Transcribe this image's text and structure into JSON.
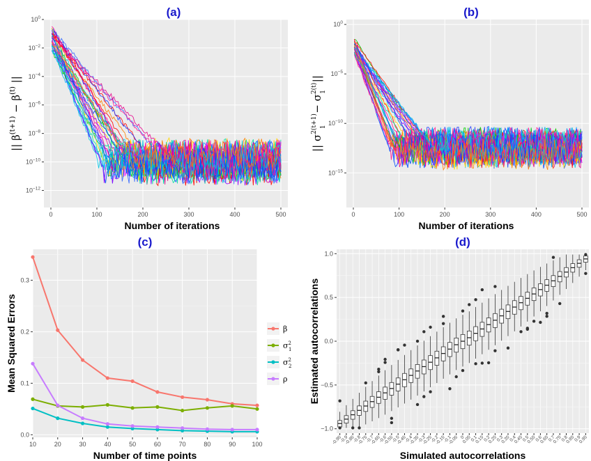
{
  "chart_data": [
    {
      "id": "a",
      "type": "line",
      "title": "(a)",
      "xlabel": "Number of iterations",
      "ylabel_parts": [
        "|| β",
        "(t+1)",
        " − β",
        "(t)",
        " ||"
      ],
      "xlim": [
        0,
        500
      ],
      "x_ticks": [
        0,
        100,
        200,
        300,
        400,
        500
      ],
      "y_scale": "log10",
      "ylim_log10": [
        -13.2,
        0
      ],
      "y_tick_exponents": [
        0,
        -2,
        -4,
        -6,
        -8,
        -10,
        -12
      ],
      "grid": true,
      "series_description": "many replicate convergence traces",
      "curve_params": {
        "start_log10": -1.2,
        "slope_per_iter": -0.055,
        "plateau_log10": -10.0,
        "noise_log10": 1.1
      },
      "colors": [
        "#1f3cff",
        "#0047ff",
        "#ff1493",
        "#e8008c",
        "#00c8e8",
        "#ff7f00",
        "#9a00ff",
        "#00d000",
        "#ffd700",
        "#ff0000",
        "#00a0ff",
        "#ff00ff",
        "#3366ff",
        "#00e0a0"
      ]
    },
    {
      "id": "b",
      "type": "line",
      "title": "(b)",
      "xlabel": "Number of iterations",
      "ylabel_parts": [
        "|| σ",
        "2(t+1)",
        "1",
        " − σ",
        "2(t)",
        "1",
        " ||"
      ],
      "xlim": [
        0,
        500
      ],
      "x_ticks": [
        0,
        100,
        200,
        300,
        400,
        500
      ],
      "y_scale": "log10",
      "ylim_log10": [
        -18.5,
        0.5
      ],
      "y_tick_exponents": [
        0,
        -5,
        -10,
        -15
      ],
      "grid": true,
      "series_description": "many replicate convergence traces",
      "curve_params": {
        "start_log10": -2.0,
        "slope_per_iter": -0.09,
        "plateau_log10": -12.5,
        "noise_log10": 1.6
      },
      "colors": [
        "#1f3cff",
        "#0047ff",
        "#ff1493",
        "#e8008c",
        "#00c8e8",
        "#ff7f00",
        "#9a00ff",
        "#00d000",
        "#ffd700",
        "#ff0000",
        "#00a0ff",
        "#ff00ff",
        "#3366ff",
        "#00e0a0"
      ]
    },
    {
      "id": "c",
      "type": "line",
      "title": "(c)",
      "xlabel": "Number of time points",
      "ylabel": "Mean Squared Errors",
      "x": [
        10,
        20,
        30,
        40,
        50,
        60,
        70,
        80,
        90,
        100
      ],
      "xlim": [
        10,
        100
      ],
      "ylim": [
        -0.005,
        0.36
      ],
      "y_ticks": [
        0.0,
        0.1,
        0.2,
        0.3
      ],
      "grid": true,
      "legend_position": "right",
      "series": [
        {
          "name": "β",
          "sub": "",
          "sup": "",
          "color": "#f8766d",
          "values": [
            0.345,
            0.203,
            0.145,
            0.11,
            0.104,
            0.083,
            0.073,
            0.068,
            0.06,
            0.057
          ]
        },
        {
          "name": "σ",
          "sub": "1",
          "sup": "2",
          "color": "#7cae00",
          "values": [
            0.069,
            0.056,
            0.054,
            0.058,
            0.052,
            0.054,
            0.047,
            0.052,
            0.056,
            0.05
          ]
        },
        {
          "name": "σ",
          "sub": "2",
          "sup": "2",
          "color": "#00bfc4",
          "values": [
            0.051,
            0.032,
            0.022,
            0.015,
            0.012,
            0.01,
            0.008,
            0.007,
            0.006,
            0.006
          ]
        },
        {
          "name": "ρ",
          "sub": "",
          "sup": "",
          "color": "#c77cff",
          "values": [
            0.138,
            0.057,
            0.032,
            0.021,
            0.017,
            0.015,
            0.013,
            0.011,
            0.01,
            0.01
          ]
        }
      ]
    },
    {
      "id": "d",
      "type": "box",
      "title": "(d)",
      "xlabel": "Simulated autocorrelations",
      "ylabel": "Estimated autocorrelations",
      "ylim": [
        -1.05,
        1.05
      ],
      "y_ticks": [
        -1.0,
        -0.5,
        0.0,
        0.5,
        1.0
      ],
      "y_tick_labels": [
        "−1.0",
        "−0.5",
        "0.0",
        "0.5",
        "1.0"
      ],
      "grid": true,
      "categories": [
        -0.95,
        -0.9,
        -0.85,
        -0.8,
        -0.75,
        -0.7,
        -0.65,
        -0.6,
        -0.55,
        -0.5,
        -0.45,
        -0.4,
        -0.35,
        -0.3,
        -0.25,
        -0.2,
        -0.15,
        -0.1,
        -0.05,
        0,
        0.05,
        0.1,
        0.15,
        0.2,
        0.25,
        0.3,
        0.35,
        0.4,
        0.45,
        0.5,
        0.55,
        0.6,
        0.65,
        0.7,
        0.75,
        0.8,
        0.85,
        0.9,
        0.95
      ],
      "category_labels": [
        "-0.95",
        "-0.9",
        "-0.85",
        "-0.8",
        "-0.75",
        "-0.7",
        "-0.65",
        "-0.6",
        "-0.55",
        "-0.5",
        "-0.45",
        "-0.4",
        "-0.35",
        "-0.3",
        "-0.25",
        "-0.2",
        "-0.15",
        "-0.1",
        "-0.05",
        "0",
        "0.05",
        "0.1",
        "0.15",
        "0.2",
        "0.25",
        "0.3",
        "0.35",
        "0.4",
        "0.45",
        "0.5",
        "0.55",
        "0.6",
        "0.65",
        "0.7",
        "0.75",
        "0.8",
        "0.85",
        "0.9",
        "0.95"
      ],
      "box_spread": {
        "iqr_half_start": 0.03,
        "iqr_half_mid": 0.085,
        "whisker_factor": 2.4
      }
    }
  ]
}
